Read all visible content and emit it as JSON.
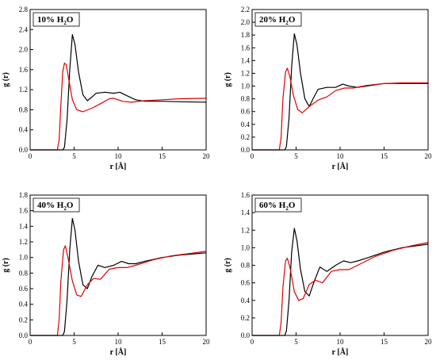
{
  "chart_data": [
    {
      "type": "line",
      "label": "10% H",
      "label_sub": "2",
      "label_tail": "O",
      "xlabel": "r [Å]",
      "ylabel": "g (r)",
      "xlim": [
        0,
        20
      ],
      "ylim": [
        0,
        2.8
      ],
      "xticks": [
        0,
        5,
        10,
        15,
        20
      ],
      "yticks": [
        0.0,
        0.4,
        0.8,
        1.2,
        1.6,
        2.0,
        2.4,
        2.8
      ],
      "yformat": 1,
      "series": [
        {
          "color": "#000000",
          "points": [
            [
              0,
              0
            ],
            [
              3.7,
              0
            ],
            [
              3.9,
              0.05
            ],
            [
              4.2,
              0.6
            ],
            [
              4.5,
              1.6
            ],
            [
              4.8,
              2.3
            ],
            [
              5.1,
              2.1
            ],
            [
              5.5,
              1.55
            ],
            [
              6.0,
              1.1
            ],
            [
              6.5,
              0.98
            ],
            [
              7.0,
              1.05
            ],
            [
              7.5,
              1.13
            ],
            [
              8.5,
              1.15
            ],
            [
              9.5,
              1.13
            ],
            [
              10.2,
              1.15
            ],
            [
              11,
              1.08
            ],
            [
              12,
              1.0
            ],
            [
              13,
              0.97
            ],
            [
              15,
              0.97
            ],
            [
              17,
              0.96
            ],
            [
              20,
              0.95
            ]
          ]
        },
        {
          "color": "#e00000",
          "points": [
            [
              0,
              0
            ],
            [
              3.1,
              0
            ],
            [
              3.3,
              0.2
            ],
            [
              3.5,
              0.9
            ],
            [
              3.7,
              1.55
            ],
            [
              3.9,
              1.73
            ],
            [
              4.1,
              1.7
            ],
            [
              4.4,
              1.4
            ],
            [
              4.8,
              1.0
            ],
            [
              5.3,
              0.8
            ],
            [
              6.0,
              0.76
            ],
            [
              7.0,
              0.83
            ],
            [
              8.0,
              0.92
            ],
            [
              9.0,
              1.02
            ],
            [
              9.5,
              1.03
            ],
            [
              10.5,
              0.97
            ],
            [
              11.5,
              0.95
            ],
            [
              13,
              0.98
            ],
            [
              15,
              1.0
            ],
            [
              17,
              1.02
            ],
            [
              20,
              1.03
            ]
          ]
        }
      ]
    },
    {
      "type": "line",
      "label": "20% H",
      "label_sub": "2",
      "label_tail": "O",
      "xlabel": "r [Å]",
      "ylabel": "g (r)",
      "xlim": [
        0,
        20
      ],
      "ylim": [
        0,
        2.2
      ],
      "xticks": [
        0,
        5,
        10,
        15,
        20
      ],
      "yticks": [
        0.0,
        0.2,
        0.4,
        0.6,
        0.8,
        1.0,
        1.2,
        1.4,
        1.6,
        1.8,
        2.0,
        2.2
      ],
      "yformat": 1,
      "series": [
        {
          "color": "#000000",
          "points": [
            [
              0,
              0
            ],
            [
              3.7,
              0
            ],
            [
              3.9,
              0.05
            ],
            [
              4.2,
              0.5
            ],
            [
              4.5,
              1.3
            ],
            [
              4.8,
              1.82
            ],
            [
              5.1,
              1.65
            ],
            [
              5.5,
              1.2
            ],
            [
              6.0,
              0.8
            ],
            [
              6.5,
              0.68
            ],
            [
              7.0,
              0.82
            ],
            [
              7.5,
              0.95
            ],
            [
              8.5,
              0.98
            ],
            [
              9.5,
              0.98
            ],
            [
              10.3,
              1.03
            ],
            [
              11,
              1.0
            ],
            [
              12,
              0.98
            ],
            [
              13,
              1.0
            ],
            [
              15,
              1.04
            ],
            [
              17,
              1.04
            ],
            [
              20,
              1.04
            ]
          ]
        },
        {
          "color": "#e00000",
          "points": [
            [
              0,
              0
            ],
            [
              3.1,
              0
            ],
            [
              3.3,
              0.2
            ],
            [
              3.5,
              0.8
            ],
            [
              3.8,
              1.22
            ],
            [
              4.0,
              1.28
            ],
            [
              4.3,
              1.15
            ],
            [
              4.7,
              0.85
            ],
            [
              5.2,
              0.63
            ],
            [
              5.7,
              0.58
            ],
            [
              6.5,
              0.68
            ],
            [
              7.5,
              0.78
            ],
            [
              8.5,
              0.83
            ],
            [
              9.5,
              0.93
            ],
            [
              10.5,
              0.97
            ],
            [
              11.5,
              0.97
            ],
            [
              13,
              1.01
            ],
            [
              15,
              1.04
            ],
            [
              17,
              1.05
            ],
            [
              20,
              1.05
            ]
          ]
        }
      ]
    },
    {
      "type": "line",
      "label": "40% H",
      "label_sub": "2",
      "label_tail": "O",
      "xlabel": "r [Å]",
      "ylabel": "g (r)",
      "xlim": [
        0,
        20
      ],
      "ylim": [
        0,
        1.8
      ],
      "xticks": [
        0,
        5,
        10,
        15,
        20
      ],
      "yticks": [
        0.0,
        0.2,
        0.4,
        0.6,
        0.8,
        1.0,
        1.2,
        1.4,
        1.6,
        1.8
      ],
      "yformat": 1,
      "series": [
        {
          "color": "#000000",
          "points": [
            [
              0,
              0
            ],
            [
              3.7,
              0
            ],
            [
              3.9,
              0.05
            ],
            [
              4.2,
              0.45
            ],
            [
              4.5,
              1.1
            ],
            [
              4.8,
              1.5
            ],
            [
              5.1,
              1.35
            ],
            [
              5.5,
              0.95
            ],
            [
              6.0,
              0.65
            ],
            [
              6.5,
              0.6
            ],
            [
              7.0,
              0.75
            ],
            [
              7.7,
              0.9
            ],
            [
              8.5,
              0.87
            ],
            [
              9.5,
              0.9
            ],
            [
              10.4,
              0.95
            ],
            [
              11.2,
              0.92
            ],
            [
              12,
              0.92
            ],
            [
              13,
              0.95
            ],
            [
              15,
              1.0
            ],
            [
              17,
              1.03
            ],
            [
              20,
              1.06
            ]
          ]
        },
        {
          "color": "#e00000",
          "points": [
            [
              0,
              0
            ],
            [
              3.1,
              0
            ],
            [
              3.3,
              0.2
            ],
            [
              3.5,
              0.7
            ],
            [
              3.8,
              1.1
            ],
            [
              4.0,
              1.15
            ],
            [
              4.3,
              1.0
            ],
            [
              4.8,
              0.7
            ],
            [
              5.3,
              0.52
            ],
            [
              5.8,
              0.5
            ],
            [
              6.5,
              0.65
            ],
            [
              7.2,
              0.73
            ],
            [
              8.0,
              0.72
            ],
            [
              9.0,
              0.85
            ],
            [
              10,
              0.87
            ],
            [
              11,
              0.87
            ],
            [
              12,
              0.9
            ],
            [
              14,
              0.97
            ],
            [
              16,
              1.02
            ],
            [
              18,
              1.05
            ],
            [
              20,
              1.08
            ]
          ]
        }
      ]
    },
    {
      "type": "line",
      "label": "60% H",
      "label_sub": "2",
      "label_tail": "O",
      "xlabel": "r [Å]",
      "ylabel": "g (r)",
      "xlim": [
        0,
        20
      ],
      "ylim": [
        0,
        1.6
      ],
      "xticks": [
        0,
        5,
        10,
        15,
        20
      ],
      "yticks": [
        0.0,
        0.2,
        0.4,
        0.6,
        0.8,
        1.0,
        1.2,
        1.4,
        1.6
      ],
      "yformat": 1,
      "series": [
        {
          "color": "#000000",
          "points": [
            [
              0,
              0
            ],
            [
              3.7,
              0
            ],
            [
              3.9,
              0.05
            ],
            [
              4.2,
              0.4
            ],
            [
              4.5,
              0.95
            ],
            [
              4.8,
              1.22
            ],
            [
              5.1,
              1.08
            ],
            [
              5.5,
              0.75
            ],
            [
              6.0,
              0.5
            ],
            [
              6.5,
              0.45
            ],
            [
              7.0,
              0.6
            ],
            [
              7.7,
              0.78
            ],
            [
              8.5,
              0.73
            ],
            [
              9.5,
              0.8
            ],
            [
              10.4,
              0.85
            ],
            [
              11.2,
              0.83
            ],
            [
              12,
              0.85
            ],
            [
              13,
              0.88
            ],
            [
              15,
              0.95
            ],
            [
              17,
              1.0
            ],
            [
              20,
              1.04
            ]
          ]
        },
        {
          "color": "#e00000",
          "points": [
            [
              0,
              0
            ],
            [
              3.1,
              0
            ],
            [
              3.3,
              0.15
            ],
            [
              3.5,
              0.55
            ],
            [
              3.8,
              0.85
            ],
            [
              4.0,
              0.88
            ],
            [
              4.3,
              0.78
            ],
            [
              4.8,
              0.5
            ],
            [
              5.3,
              0.4
            ],
            [
              5.8,
              0.42
            ],
            [
              6.5,
              0.58
            ],
            [
              7.2,
              0.63
            ],
            [
              8.0,
              0.6
            ],
            [
              9.0,
              0.73
            ],
            [
              10,
              0.75
            ],
            [
              11,
              0.75
            ],
            [
              12,
              0.8
            ],
            [
              14,
              0.9
            ],
            [
              16,
              0.97
            ],
            [
              18,
              1.02
            ],
            [
              20,
              1.06
            ]
          ]
        }
      ]
    }
  ]
}
